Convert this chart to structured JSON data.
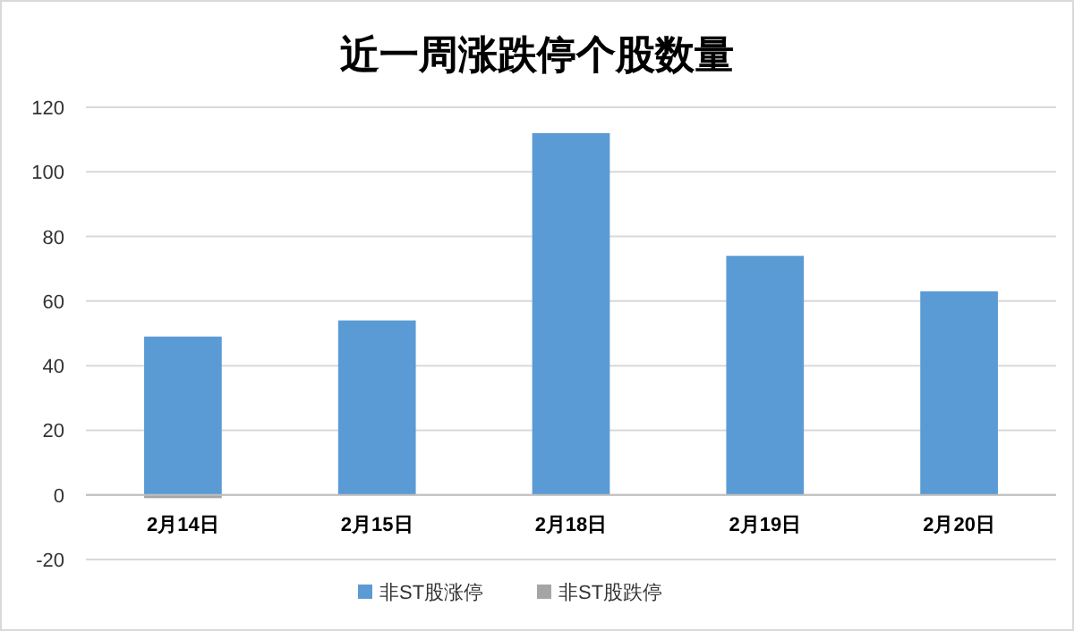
{
  "chart_data": {
    "type": "bar",
    "title": "近一周涨跌停个股数量",
    "stacked": true,
    "categories": [
      "2月14日",
      "2月15日",
      "2月18日",
      "2月19日",
      "2月20日"
    ],
    "series": [
      {
        "name": "非ST股涨停",
        "color": "#5b9bd5",
        "values": [
          49,
          54,
          112,
          74,
          63
        ]
      },
      {
        "name": "非ST股跌停",
        "color": "#a5a5a5",
        "values": [
          -1,
          null,
          null,
          null,
          null
        ]
      }
    ],
    "ylim": [
      -20,
      120
    ],
    "yticks": [
      -20,
      0,
      20,
      40,
      60,
      80,
      100,
      120
    ],
    "grid": "y",
    "legend": "bottom"
  }
}
